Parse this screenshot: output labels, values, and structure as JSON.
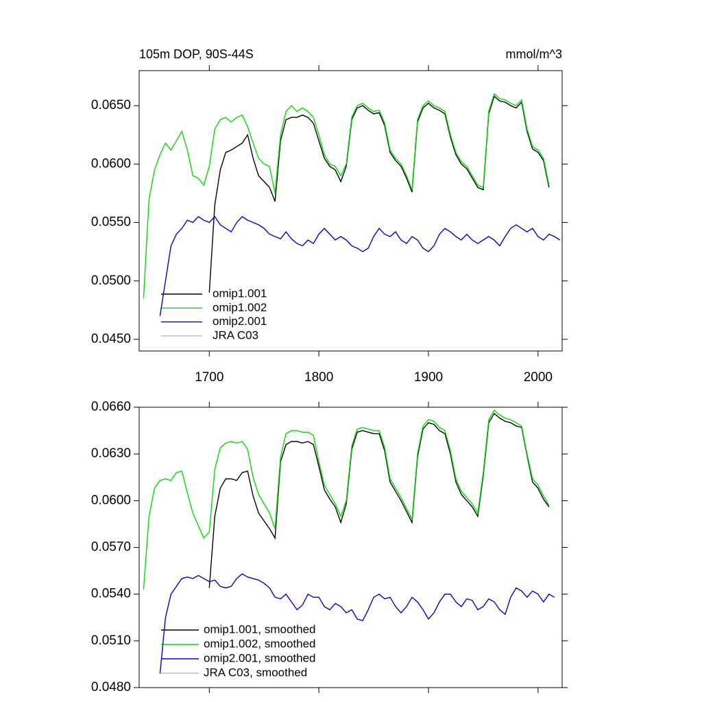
{
  "chart_data": [
    {
      "type": "line",
      "title": "105m DOP, 90S-44S",
      "units": "mmol/m^3",
      "xlim": [
        1636,
        2022
      ],
      "ylim": [
        0.044,
        0.068
      ],
      "xticks": [
        1700,
        1800,
        1900,
        2000
      ],
      "yticks": [
        {
          "value": 0.045,
          "label": "0.0450"
        },
        {
          "value": 0.05,
          "label": "0.0500"
        },
        {
          "value": 0.055,
          "label": "0.0550"
        },
        {
          "value": 0.06,
          "label": "0.0600"
        },
        {
          "value": 0.065,
          "label": "0.0650"
        }
      ],
      "legend": "lower left",
      "x": [
        1640,
        1645,
        1650,
        1655,
        1660,
        1665,
        1670,
        1675,
        1680,
        1685,
        1690,
        1695,
        1700,
        1705,
        1710,
        1715,
        1720,
        1725,
        1730,
        1735,
        1740,
        1745,
        1750,
        1755,
        1760,
        1765,
        1770,
        1775,
        1780,
        1785,
        1790,
        1795,
        1800,
        1805,
        1810,
        1815,
        1820,
        1825,
        1830,
        1835,
        1840,
        1845,
        1850,
        1855,
        1860,
        1865,
        1870,
        1875,
        1880,
        1885,
        1890,
        1895,
        1900,
        1905,
        1910,
        1915,
        1920,
        1925,
        1930,
        1935,
        1940,
        1945,
        1950,
        1955,
        1960,
        1965,
        1970,
        1975,
        1980,
        1985,
        1990,
        1995,
        2000,
        2005,
        2010,
        2015,
        2020
      ],
      "series": [
        {
          "name": "omip1.001",
          "color": "#000000",
          "values": [
            null,
            null,
            null,
            null,
            null,
            null,
            null,
            null,
            null,
            null,
            null,
            null,
            0.049,
            0.0565,
            0.0595,
            0.061,
            0.0612,
            0.0615,
            0.0618,
            0.0625,
            0.0605,
            0.059,
            0.0585,
            0.058,
            0.0568,
            0.062,
            0.0638,
            0.064,
            0.064,
            0.0642,
            0.064,
            0.0635,
            0.062,
            0.0605,
            0.0598,
            0.0595,
            0.0585,
            0.0598,
            0.0638,
            0.0648,
            0.065,
            0.0646,
            0.0643,
            0.0644,
            0.0633,
            0.061,
            0.0603,
            0.0598,
            0.0588,
            0.0576,
            0.0636,
            0.0648,
            0.0652,
            0.0648,
            0.0646,
            0.0643,
            0.0623,
            0.0608,
            0.06,
            0.0596,
            0.0588,
            0.058,
            0.0578,
            0.0643,
            0.0658,
            0.0654,
            0.0653,
            0.065,
            0.0648,
            0.0653,
            0.0628,
            0.0613,
            0.061,
            0.0603,
            0.058,
            null,
            null
          ]
        },
        {
          "name": "omip1.002",
          "color": "#00e000",
          "values": [
            0.0485,
            0.057,
            0.0595,
            0.0608,
            0.0618,
            0.0612,
            0.062,
            0.0628,
            0.0612,
            0.059,
            0.0588,
            0.0582,
            0.0598,
            0.063,
            0.0638,
            0.064,
            0.0636,
            0.064,
            0.0642,
            0.0632,
            0.0618,
            0.0605,
            0.06,
            0.0598,
            0.0575,
            0.0625,
            0.0645,
            0.065,
            0.0645,
            0.0648,
            0.0645,
            0.064,
            0.0625,
            0.0608,
            0.06,
            0.0598,
            0.059,
            0.06,
            0.064,
            0.065,
            0.0652,
            0.0648,
            0.0645,
            0.0646,
            0.0635,
            0.0612,
            0.0605,
            0.06,
            0.059,
            0.0578,
            0.0638,
            0.065,
            0.0654,
            0.065,
            0.0648,
            0.0645,
            0.0625,
            0.061,
            0.0602,
            0.0598,
            0.059,
            0.0582,
            0.058,
            0.0645,
            0.066,
            0.0656,
            0.0655,
            0.0652,
            0.065,
            0.0655,
            0.063,
            0.0615,
            0.0612,
            0.0605,
            0.0582,
            null,
            null
          ]
        },
        {
          "name": "omip2.001",
          "color": "#0000e0",
          "values": [
            null,
            null,
            null,
            0.047,
            0.05,
            0.053,
            0.054,
            0.0545,
            0.0552,
            0.055,
            0.0555,
            0.0552,
            0.055,
            0.0555,
            0.0548,
            0.0545,
            0.0542,
            0.055,
            0.0555,
            0.0552,
            0.055,
            0.0548,
            0.0545,
            0.054,
            0.0538,
            0.0536,
            0.0542,
            0.0536,
            0.0532,
            0.053,
            0.0535,
            0.0532,
            0.054,
            0.0545,
            0.054,
            0.0535,
            0.0538,
            0.0535,
            0.053,
            0.0528,
            0.0525,
            0.0528,
            0.0538,
            0.0545,
            0.054,
            0.0538,
            0.0542,
            0.0535,
            0.0532,
            0.0538,
            0.0535,
            0.0528,
            0.0525,
            0.053,
            0.054,
            0.0545,
            0.0542,
            0.0538,
            0.0535,
            0.054,
            0.0535,
            0.0532,
            0.0535,
            0.0538,
            0.0535,
            0.053,
            0.0538,
            0.0545,
            0.0548,
            0.0545,
            0.0542,
            0.0545,
            0.0538,
            0.0535,
            0.054,
            0.0538,
            0.0535
          ]
        },
        {
          "name": "JRA C03",
          "color": "#bbbbbb",
          "values": [
            null,
            null,
            null,
            null,
            null,
            null,
            null,
            null,
            null,
            null,
            null,
            null,
            null,
            null,
            null,
            null,
            null,
            null,
            null,
            null,
            null,
            null,
            null,
            null,
            null,
            null,
            null,
            null,
            null,
            null,
            null,
            null,
            null,
            null,
            null,
            null,
            null,
            null,
            null,
            null,
            null,
            null,
            null,
            null,
            null,
            null,
            null,
            null,
            null,
            null,
            null,
            null,
            null,
            null,
            null,
            null,
            null,
            null,
            null,
            null,
            null,
            null,
            null,
            null,
            null,
            null,
            null,
            null,
            null,
            null,
            null,
            null,
            null,
            null,
            null,
            null,
            null
          ]
        }
      ]
    },
    {
      "type": "line",
      "xlim": [
        1636,
        2022
      ],
      "ylim": [
        0.048,
        0.066
      ],
      "yticks": [
        {
          "value": 0.048,
          "label": "0.0480"
        },
        {
          "value": 0.051,
          "label": "0.0510"
        },
        {
          "value": 0.054,
          "label": "0.0540"
        },
        {
          "value": 0.057,
          "label": "0.0570"
        },
        {
          "value": 0.06,
          "label": "0.0600"
        },
        {
          "value": 0.063,
          "label": "0.0630"
        },
        {
          "value": 0.066,
          "label": "0.0660"
        }
      ],
      "legend": "lower left",
      "x": [
        1640,
        1645,
        1650,
        1655,
        1660,
        1665,
        1670,
        1675,
        1680,
        1685,
        1690,
        1695,
        1700,
        1705,
        1710,
        1715,
        1720,
        1725,
        1730,
        1735,
        1740,
        1745,
        1750,
        1755,
        1760,
        1765,
        1770,
        1775,
        1780,
        1785,
        1790,
        1795,
        1800,
        1805,
        1810,
        1815,
        1820,
        1825,
        1830,
        1835,
        1840,
        1845,
        1850,
        1855,
        1860,
        1865,
        1870,
        1875,
        1880,
        1885,
        1890,
        1895,
        1900,
        1905,
        1910,
        1915,
        1920,
        1925,
        1930,
        1935,
        1940,
        1945,
        1950,
        1955,
        1960,
        1965,
        1970,
        1975,
        1980,
        1985,
        1990,
        1995,
        2000,
        2005,
        2010,
        2015,
        2020
      ],
      "series": [
        {
          "name": "omip1.001, smoothed",
          "color": "#000000",
          "values": [
            null,
            null,
            null,
            null,
            null,
            null,
            null,
            null,
            null,
            null,
            null,
            null,
            0.0544,
            0.059,
            0.0608,
            0.0614,
            0.0614,
            0.0613,
            0.0618,
            0.0619,
            0.0603,
            0.0592,
            0.0587,
            0.0582,
            0.0576,
            0.0625,
            0.0636,
            0.0638,
            0.0638,
            0.0637,
            0.0638,
            0.0636,
            0.0622,
            0.0607,
            0.0601,
            0.0596,
            0.0586,
            0.0598,
            0.0633,
            0.0644,
            0.0645,
            0.0644,
            0.0643,
            0.0643,
            0.0632,
            0.0612,
            0.0606,
            0.06,
            0.0593,
            0.0586,
            0.0628,
            0.0646,
            0.065,
            0.0649,
            0.0645,
            0.0643,
            0.063,
            0.0612,
            0.0604,
            0.06,
            0.0596,
            0.059,
            0.0616,
            0.065,
            0.0656,
            0.0653,
            0.0651,
            0.065,
            0.0648,
            0.0647,
            0.0629,
            0.0612,
            0.0608,
            0.0601,
            0.0596,
            null,
            null
          ]
        },
        {
          "name": "omip1.002, smoothed",
          "color": "#00e000",
          "values": [
            0.0543,
            0.059,
            0.0608,
            0.0613,
            0.0614,
            0.0613,
            0.0618,
            0.0619,
            0.0605,
            0.0592,
            0.0584,
            0.0576,
            0.058,
            0.062,
            0.0634,
            0.0637,
            0.0638,
            0.0637,
            0.0638,
            0.0633,
            0.0615,
            0.0604,
            0.0598,
            0.0592,
            0.0582,
            0.0628,
            0.0643,
            0.0645,
            0.0645,
            0.0644,
            0.0644,
            0.0642,
            0.0625,
            0.061,
            0.0604,
            0.0598,
            0.059,
            0.06,
            0.0635,
            0.0646,
            0.0647,
            0.0646,
            0.0645,
            0.0645,
            0.0634,
            0.0614,
            0.0608,
            0.0602,
            0.0595,
            0.0588,
            0.063,
            0.0648,
            0.0652,
            0.0651,
            0.0647,
            0.0645,
            0.0632,
            0.0614,
            0.0606,
            0.0602,
            0.0598,
            0.0592,
            0.0618,
            0.0652,
            0.0658,
            0.0655,
            0.0653,
            0.0652,
            0.065,
            0.0648,
            0.063,
            0.0614,
            0.061,
            0.0603,
            0.0597,
            null,
            null
          ]
        },
        {
          "name": "omip2.001, smoothed",
          "color": "#0000e0",
          "values": [
            null,
            null,
            null,
            0.0489,
            0.0525,
            0.054,
            0.0545,
            0.055,
            0.0551,
            0.055,
            0.0552,
            0.055,
            0.0548,
            0.0549,
            0.0545,
            0.0544,
            0.0545,
            0.055,
            0.0553,
            0.0551,
            0.055,
            0.0549,
            0.0547,
            0.0544,
            0.0538,
            0.0537,
            0.054,
            0.0535,
            0.053,
            0.0533,
            0.054,
            0.0538,
            0.0538,
            0.0532,
            0.053,
            0.0534,
            0.0532,
            0.0528,
            0.053,
            0.0524,
            0.0523,
            0.053,
            0.0538,
            0.054,
            0.0537,
            0.0538,
            0.0532,
            0.0528,
            0.0532,
            0.0538,
            0.0535,
            0.053,
            0.0524,
            0.0528,
            0.0535,
            0.054,
            0.054,
            0.0535,
            0.0532,
            0.0537,
            0.0536,
            0.053,
            0.0532,
            0.0537,
            0.0535,
            0.053,
            0.0527,
            0.0538,
            0.0544,
            0.0542,
            0.0538,
            0.0542,
            0.054,
            0.0535,
            0.054,
            0.0538,
            null
          ]
        },
        {
          "name": "JRA C03, smoothed",
          "color": "#bbbbbb",
          "values": [
            null,
            null,
            null,
            null,
            null,
            null,
            null,
            null,
            null,
            null,
            null,
            null,
            null,
            null,
            null,
            null,
            null,
            null,
            null,
            null,
            null,
            null,
            null,
            null,
            null,
            null,
            null,
            null,
            null,
            null,
            null,
            null,
            null,
            null,
            null,
            null,
            null,
            null,
            null,
            null,
            null,
            null,
            null,
            null,
            null,
            null,
            null,
            null,
            null,
            null,
            null,
            null,
            null,
            null,
            null,
            null,
            null,
            null,
            null,
            null,
            null,
            null,
            null,
            null,
            null,
            null,
            null,
            null,
            null,
            null,
            null,
            null,
            null,
            null,
            null,
            null,
            null
          ]
        }
      ]
    }
  ]
}
